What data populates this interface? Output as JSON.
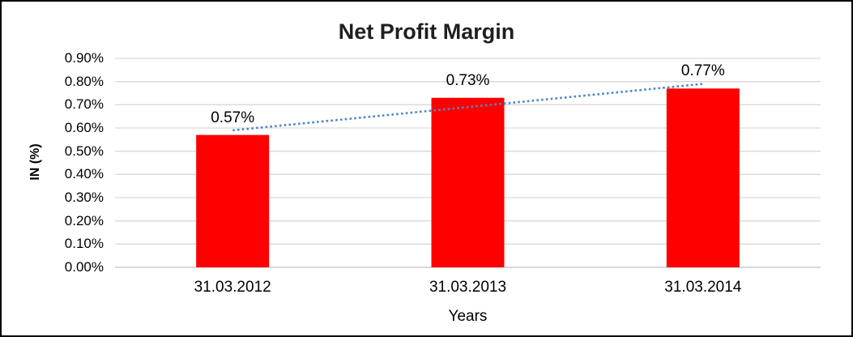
{
  "chart_data": {
    "type": "bar",
    "title": "Net Profit Margin",
    "xlabel": "Years",
    "ylabel": "IN (%)",
    "categories": [
      "31.03.2012",
      "31.03.2013",
      "31.03.2014"
    ],
    "series": [
      {
        "name": "Net Profit Margin",
        "values": [
          0.57,
          0.73,
          0.77
        ]
      }
    ],
    "value_labels": [
      "0.57%",
      "0.73%",
      "0.77%"
    ],
    "ylim": [
      0,
      0.9
    ],
    "ytick_step": 0.1,
    "ytick_labels": [
      "0.00%",
      "0.10%",
      "0.20%",
      "0.30%",
      "0.40%",
      "0.50%",
      "0.60%",
      "0.70%",
      "0.80%",
      "0.90%"
    ],
    "grid": true,
    "legend": "none",
    "bar_color": "#ff0000",
    "gridline_color": "#d9d9d9",
    "axisline_color": "#bfbfbf",
    "trendline": {
      "type": "linear",
      "style": "dotted",
      "color": "#4e86c6"
    },
    "title_color": "#1f1f1f",
    "background": "#ffffff",
    "border_color": "#000000"
  }
}
